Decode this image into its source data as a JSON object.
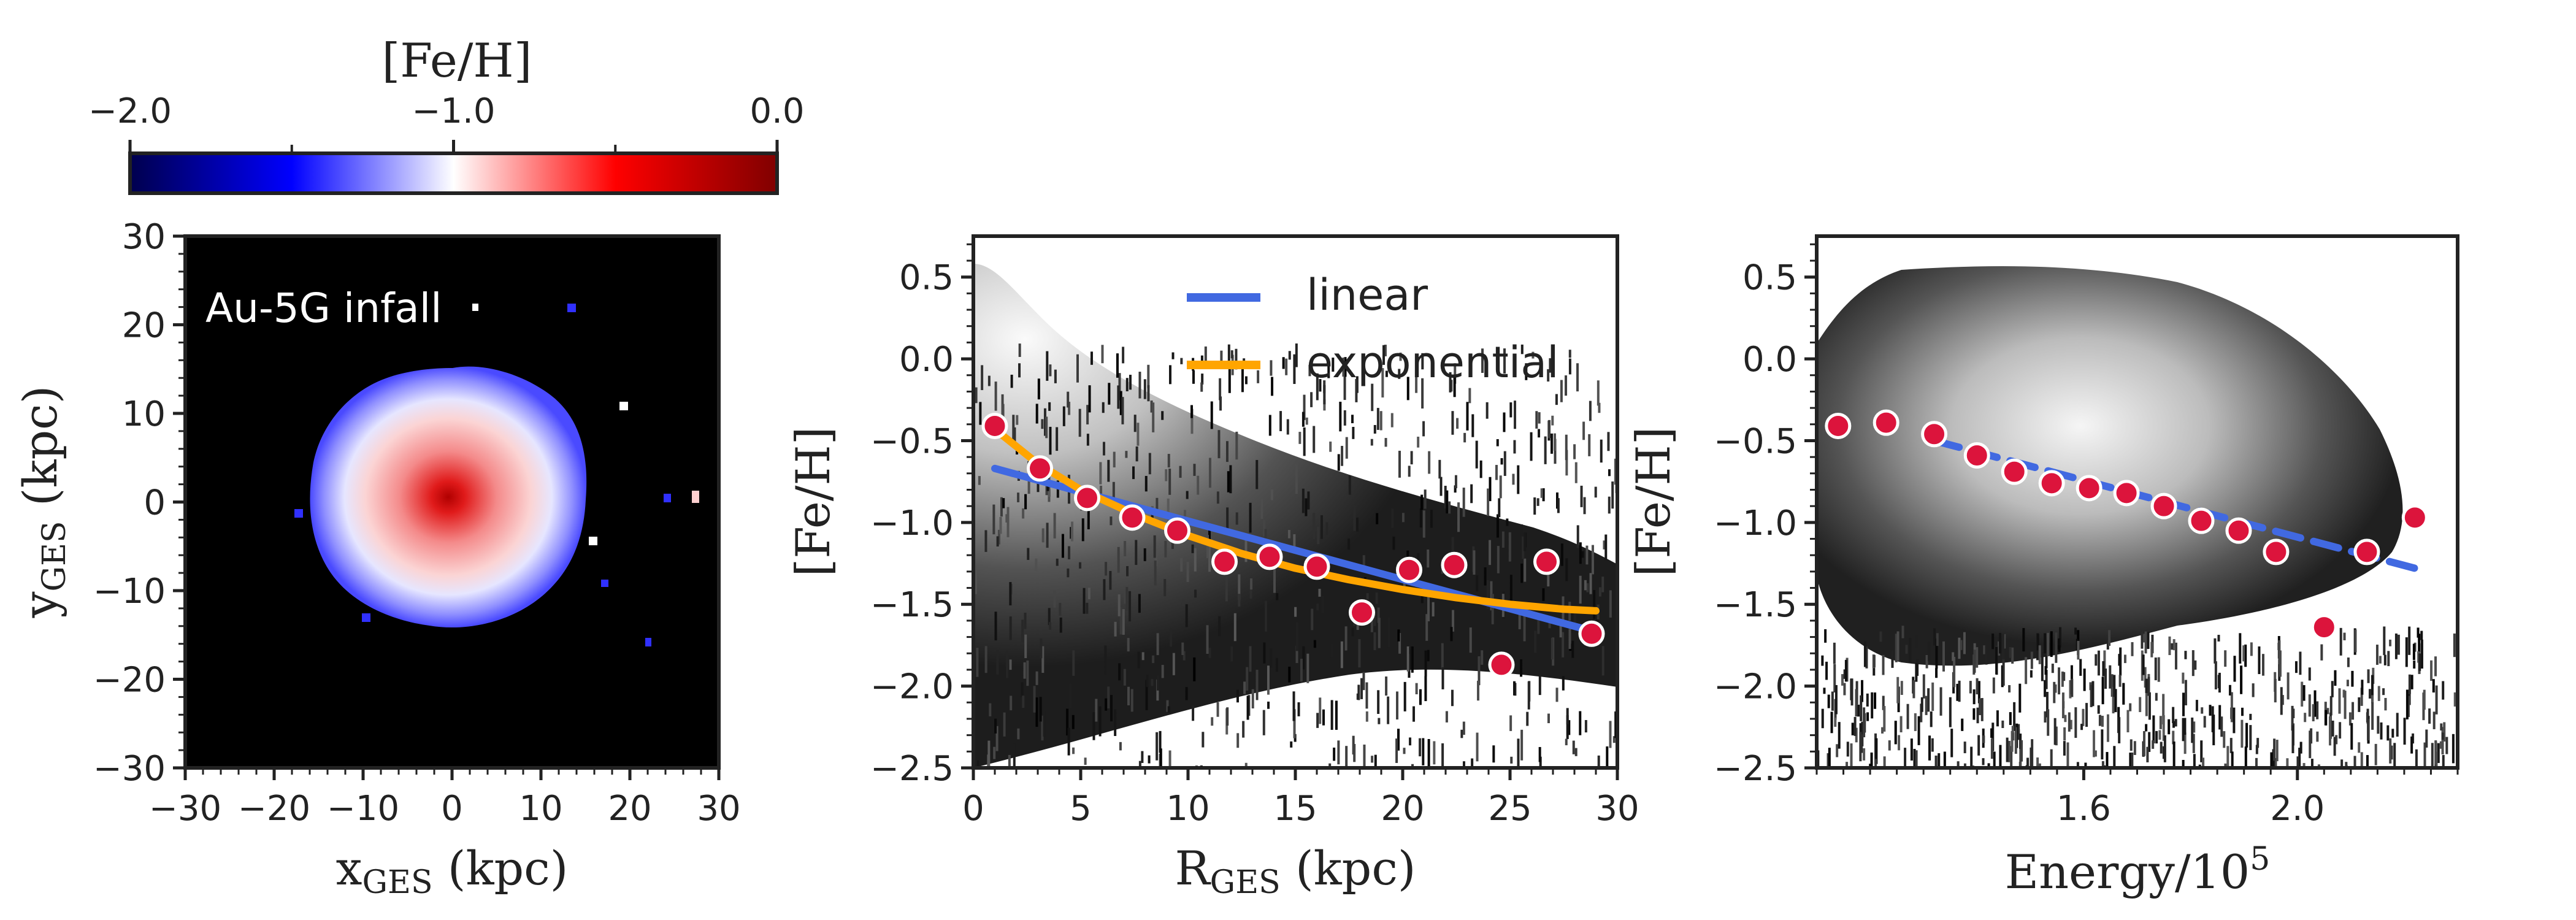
{
  "colorbar": {
    "title": "[Fe/H]",
    "range": [
      -2.0,
      0.0
    ],
    "tick_values": [
      -2.0,
      -1.0,
      0.0
    ],
    "tick_labels": [
      "−2.0",
      "−1.0",
      "0.0"
    ],
    "minor_ticks": [
      -1.5,
      -0.5
    ],
    "colormap": "seismic"
  },
  "chart_data": [
    {
      "type": "heatmap",
      "panel": "left",
      "annotation": "Au-5G infall",
      "xlabel": "x_GES (kpc)",
      "xlabel_main": "x",
      "xlabel_sub": "GES",
      "xlabel_unit": "(kpc)",
      "ylabel": "y_GES (kpc)",
      "ylabel_main": "y",
      "ylabel_sub": "GES",
      "ylabel_unit": "(kpc)",
      "xlim": [
        -30,
        30
      ],
      "ylim": [
        -30,
        30
      ],
      "xticks": [
        -30,
        -20,
        -10,
        0,
        10,
        20,
        30
      ],
      "xtick_labels": [
        "−30",
        "−20",
        "−10",
        "0",
        "10",
        "20",
        "30"
      ],
      "yticks": [
        -30,
        -20,
        -10,
        0,
        10,
        20,
        30
      ],
      "ytick_labels": [
        "−30",
        "−20",
        "−10",
        "0",
        "10",
        "20",
        "30"
      ],
      "background": "#000000",
      "center_feh": -0.15,
      "edge_feh": -1.6,
      "extent_radius_kpc": 16
    },
    {
      "type": "scatter",
      "panel": "middle",
      "xlabel": "R_GES (kpc)",
      "xlabel_main": "R",
      "xlabel_sub": "GES",
      "xlabel_unit": "(kpc)",
      "ylabel": "[Fe/H]",
      "xlim": [
        0,
        30
      ],
      "ylim": [
        -2.5,
        0.75
      ],
      "xticks": [
        0,
        5,
        10,
        15,
        20,
        25,
        30
      ],
      "xtick_labels": [
        "0",
        "5",
        "10",
        "15",
        "20",
        "25",
        "30"
      ],
      "yticks": [
        -2.5,
        -2.0,
        -1.5,
        -1.0,
        -0.5,
        0.0,
        0.5
      ],
      "ytick_labels": [
        "−2.5",
        "−2.0",
        "−1.5",
        "−1.0",
        "−0.5",
        "0.0",
        "0.5"
      ],
      "points": {
        "x": [
          1.0,
          3.1,
          5.3,
          7.4,
          9.5,
          11.7,
          13.8,
          16.0,
          18.1,
          20.3,
          22.4,
          24.6,
          26.7,
          28.8
        ],
        "y": [
          -0.41,
          -0.67,
          -0.85,
          -0.97,
          -1.05,
          -1.24,
          -1.21,
          -1.27,
          -1.55,
          -1.29,
          -1.26,
          -1.87,
          -1.24,
          -1.68
        ],
        "color": "#dc143c"
      },
      "legend": [
        {
          "label": "linear",
          "color": "#4169e1"
        },
        {
          "label": "exponential",
          "color": "#ffa500"
        }
      ],
      "linear_fit": {
        "x": [
          1,
          29
        ],
        "y": [
          -0.67,
          -1.67
        ],
        "color": "#4169e1"
      },
      "exponential_fit": {
        "x": [
          1,
          3,
          5,
          7.5,
          10,
          12.5,
          15,
          17.5,
          20,
          22.5,
          25,
          27.5,
          29
        ],
        "y": [
          -0.43,
          -0.64,
          -0.8,
          -0.95,
          -1.08,
          -1.19,
          -1.28,
          -1.35,
          -1.41,
          -1.46,
          -1.5,
          -1.53,
          -1.54
        ],
        "color": "#ffa500"
      },
      "background": "#ffffff"
    },
    {
      "type": "scatter",
      "panel": "right",
      "xlabel": "Energy/10^5",
      "xlabel_main": "Energy/10",
      "xlabel_sup": "5",
      "ylabel": "[Fe/H]",
      "xlim": [
        1.1,
        2.3
      ],
      "ylim": [
        -2.5,
        0.75
      ],
      "xticks": [
        1.6,
        2.0
      ],
      "xtick_labels": [
        "1.6",
        "2.0"
      ],
      "yticks": [
        -2.5,
        -2.0,
        -1.5,
        -1.0,
        -0.5,
        0.0,
        0.5
      ],
      "ytick_labels": [
        "−2.5",
        "−2.0",
        "−1.5",
        "−1.0",
        "−0.5",
        "0.0",
        "0.5"
      ],
      "points": {
        "x": [
          1.14,
          1.23,
          1.32,
          1.4,
          1.47,
          1.54,
          1.61,
          1.68,
          1.75,
          1.82,
          1.89,
          1.96,
          2.05,
          2.13,
          2.22
        ],
        "y": [
          -0.41,
          -0.39,
          -0.46,
          -0.59,
          -0.69,
          -0.76,
          -0.79,
          -0.82,
          -0.9,
          -0.99,
          -1.05,
          -1.18,
          -1.64,
          -1.18,
          -0.97
        ],
        "color": "#dc143c"
      },
      "linear_fit": {
        "x": [
          1.32,
          2.22
        ],
        "y": [
          -0.5,
          -1.28
        ],
        "color": "#4169e1",
        "style": "dashed"
      },
      "background": "#ffffff"
    }
  ]
}
